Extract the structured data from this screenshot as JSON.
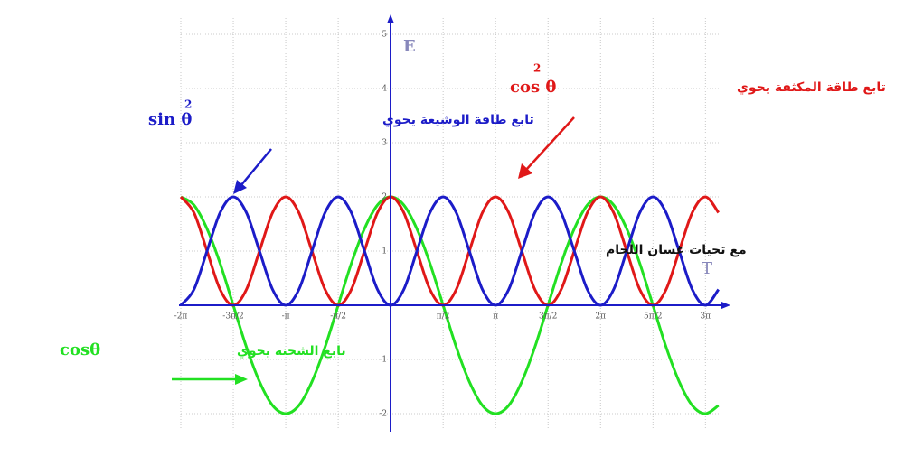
{
  "chart_data": {
    "type": "line",
    "x": [
      -2,
      -1.875,
      -1.75,
      -1.625,
      -1.5,
      -1.375,
      -1.25,
      -1.125,
      -1,
      -0.875,
      -0.75,
      -0.625,
      -0.5,
      -0.375,
      -0.25,
      -0.125,
      0,
      0.125,
      0.25,
      0.375,
      0.5,
      0.625,
      0.75,
      0.875,
      1,
      1.125,
      1.25,
      1.375,
      1.5,
      1.625,
      1.75,
      1.875,
      2,
      2.125,
      2.25,
      2.375,
      2.5,
      2.625,
      2.75,
      2.875,
      3,
      3.125
    ],
    "series": [
      {
        "color": "#e01818",
        "values": [
          2,
          1.71,
          1,
          0.29,
          0,
          0.29,
          1,
          1.71,
          2,
          1.71,
          1,
          0.29,
          0,
          0.29,
          1,
          1.71,
          2,
          1.71,
          1,
          0.29,
          0,
          0.29,
          1,
          1.71,
          2,
          1.71,
          1,
          0.29,
          0,
          0.29,
          1,
          1.71,
          2,
          1.71,
          1,
          0.29,
          0,
          0.29,
          1,
          1.71,
          2,
          1.71
        ]
      },
      {
        "color": "#1c1cc8",
        "values": [
          0,
          0.29,
          1,
          1.71,
          2,
          1.71,
          1,
          0.29,
          0,
          0.29,
          1,
          1.71,
          2,
          1.71,
          1,
          0.29,
          0,
          0.29,
          1,
          1.71,
          2,
          1.71,
          1,
          0.29,
          0,
          0.29,
          1,
          1.71,
          2,
          1.71,
          1,
          0.29,
          0,
          0.29,
          1,
          1.71,
          2,
          1.71,
          1,
          0.29,
          0,
          0.29
        ]
      },
      {
        "color": "#22e022",
        "values": [
          2,
          1.85,
          1.41,
          0.77,
          0,
          -0.77,
          -1.41,
          -1.85,
          -2,
          -1.85,
          -1.41,
          -0.77,
          0,
          0.77,
          1.41,
          1.85,
          2,
          1.85,
          1.41,
          0.77,
          0,
          -0.77,
          -1.41,
          -1.85,
          -2,
          -1.85,
          -1.41,
          -0.77,
          0,
          0.77,
          1.41,
          1.85,
          2,
          1.85,
          1.41,
          0.77,
          0,
          -0.77,
          -1.41,
          -1.85,
          -2,
          -1.85
        ]
      }
    ],
    "xlim": [
      -2,
      3.17
    ],
    "ylim": [
      -2.3,
      5.3
    ],
    "xticks": [
      {
        "value": -2,
        "label": "-2π"
      },
      {
        "value": -1.5,
        "label": "-3π/2"
      },
      {
        "value": -1,
        "label": "-π"
      },
      {
        "value": -0.5,
        "label": "-π/2"
      },
      {
        "value": 0.5,
        "label": "π/2"
      },
      {
        "value": 1,
        "label": "π"
      },
      {
        "value": 1.5,
        "label": "3π/2"
      },
      {
        "value": 2,
        "label": "2π"
      },
      {
        "value": 2.5,
        "label": "5π/2"
      },
      {
        "value": 3,
        "label": "3π"
      }
    ],
    "yticks": [
      -2,
      -1,
      1,
      2,
      3,
      4,
      5
    ],
    "grid": true,
    "x_label": "T",
    "y_label": "E",
    "annotations": [
      {
        "text": "تابع طاقة الوشيعة  يحوي",
        "formula": "sin θ",
        "exponent": "2",
        "color": "#1c1cc8"
      },
      {
        "text": "تابع طاقة المكثفة يحوي",
        "formula": "cos θ",
        "exponent": "2",
        "color": "#e01818"
      },
      {
        "text": "تابع الشحنة يحوي",
        "formula": "cosθ",
        "color": "#22e022"
      },
      {
        "text": "مع تحيات غسان اللحام",
        "color": "#111111"
      }
    ]
  }
}
